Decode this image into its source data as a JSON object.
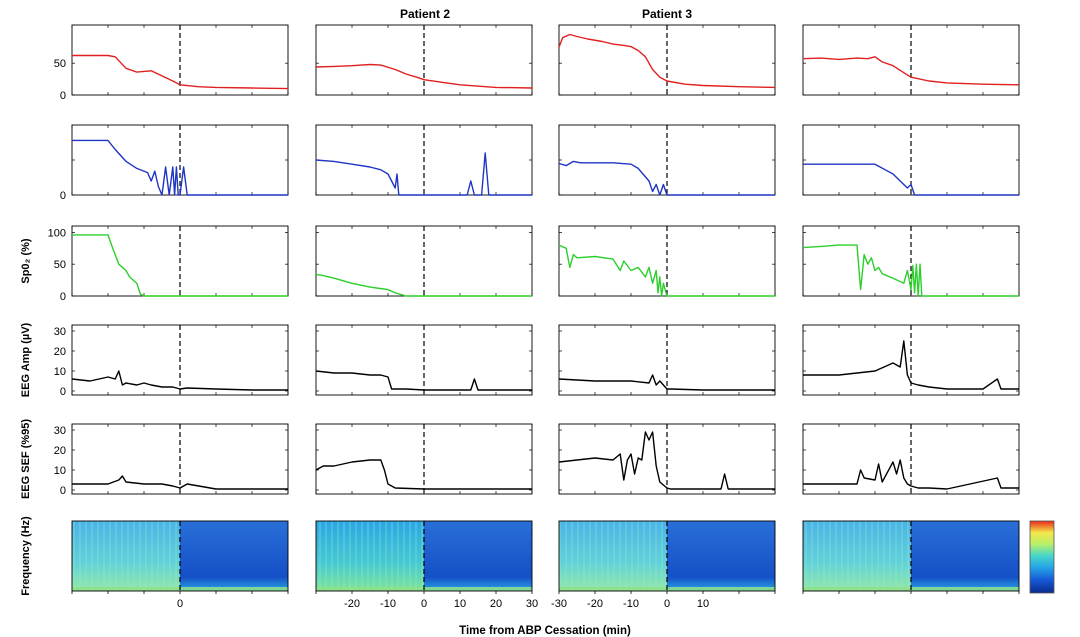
{
  "figure": {
    "column_titles": [
      "",
      "Patient 2",
      "Patient 3",
      ""
    ],
    "xlabel": "Time from ABP Cessation (min)"
  },
  "chart_data": {
    "type": "line",
    "x_unit": "min",
    "xlim": [
      -30,
      30
    ],
    "x_ticks": [
      -30,
      -20,
      -10,
      0,
      10,
      20,
      30
    ],
    "x_ticklabels_by_column": [
      [
        "",
        "",
        "",
        "0",
        "",
        "",
        ""
      ],
      [
        "",
        "-20",
        "-10",
        "0",
        "10",
        "20",
        "30"
      ],
      [
        "-30",
        "-20",
        "-10",
        "0",
        "10",
        "",
        ""
      ],
      [
        "",
        "",
        "",
        "",
        "",
        "",
        ""
      ]
    ],
    "event_line_x": 0,
    "rows": [
      {
        "key": "abp",
        "ylabel": "",
        "color": "#e02020",
        "ylim": [
          0,
          110
        ],
        "y_ticks": [
          0,
          50
        ],
        "y_ticklabels_by_column": [
          [
            "0",
            "50"
          ],
          [],
          [],
          []
        ],
        "series": [
          {
            "x": [
              -30,
              -20,
              -18,
              -15,
              -12,
              -8,
              -5,
              -2,
              0,
              5,
              10,
              20,
              30
            ],
            "y": [
              62,
              62,
              60,
              42,
              36,
              38,
              30,
              22,
              16,
              13,
              12,
              11,
              10
            ]
          },
          {
            "x": [
              -30,
              -25,
              -20,
              -15,
              -12,
              -8,
              -5,
              -2,
              0,
              5,
              10,
              20,
              30
            ],
            "y": [
              44,
              45,
              46,
              48,
              47,
              40,
              33,
              28,
              24,
              20,
              16,
              12,
              11
            ]
          },
          {
            "x": [
              -30,
              -29,
              -27,
              -25,
              -22,
              -18,
              -15,
              -12,
              -10,
              -8,
              -6,
              -4,
              -2,
              0,
              5,
              10,
              20,
              30
            ],
            "y": [
              75,
              90,
              95,
              92,
              88,
              84,
              80,
              78,
              76,
              70,
              60,
              40,
              28,
              22,
              17,
              15,
              13,
              12
            ]
          },
          {
            "x": [
              -30,
              -25,
              -20,
              -15,
              -12,
              -10,
              -8,
              -5,
              -2,
              0,
              5,
              10,
              20,
              30
            ],
            "y": [
              57,
              58,
              56,
              58,
              57,
              60,
              52,
              46,
              35,
              28,
              22,
              19,
              17,
              16
            ]
          }
        ]
      },
      {
        "key": "row2",
        "ylabel": "",
        "color": "#1f35c4",
        "ylim": [
          0,
          100
        ],
        "y_ticks": [
          0,
          50
        ],
        "y_ticklabels_by_column": [
          [
            "0",
            "",
            ""
          ],
          [],
          [],
          []
        ],
        "series": [
          {
            "x": [
              -30,
              -20,
              -18,
              -15,
              -12,
              -9,
              -8,
              -7,
              -6,
              -5,
              -4,
              -3,
              -2,
              -1.5,
              -1,
              -0.5,
              0,
              1,
              2,
              3,
              30
            ],
            "y": [
              78,
              78,
              65,
              48,
              38,
              32,
              20,
              34,
              12,
              0,
              40,
              0,
              40,
              0,
              40,
              0,
              0,
              40,
              0,
              0,
              0
            ]
          },
          {
            "x": [
              -30,
              -25,
              -20,
              -15,
              -12,
              -10,
              -8,
              -7.5,
              -7,
              -6,
              0,
              12,
              13,
              14,
              16,
              17,
              18,
              30
            ],
            "y": [
              50,
              48,
              44,
              40,
              36,
              30,
              10,
              30,
              0,
              0,
              0,
              0,
              20,
              0,
              0,
              60,
              0,
              0
            ]
          },
          {
            "x": [
              -30,
              -28,
              -26,
              -24,
              -20,
              -15,
              -10,
              -8,
              -5,
              -4,
              -3,
              -2,
              -1,
              0,
              1,
              30
            ],
            "y": [
              45,
              42,
              48,
              46,
              46,
              46,
              44,
              38,
              20,
              5,
              15,
              0,
              15,
              0,
              0,
              0
            ]
          },
          {
            "x": [
              -30,
              -20,
              -15,
              -10,
              -5,
              -3,
              -1,
              0,
              1,
              2,
              30
            ],
            "y": [
              44,
              44,
              44,
              44,
              30,
              20,
              10,
              15,
              0,
              0,
              0
            ]
          }
        ]
      },
      {
        "key": "spo2",
        "ylabel": "Sp0₂ (%)",
        "color": "#2ccf2c",
        "ylim": [
          0,
          110
        ],
        "y_ticks": [
          0,
          50,
          100
        ],
        "y_ticklabels_by_column": [
          [
            "0",
            "50",
            "100"
          ],
          [],
          [],
          []
        ],
        "series": [
          {
            "x": [
              -30,
              -20,
              -19,
              -17,
              -15,
              -14,
              -13,
              -12,
              -11,
              -10,
              0,
              30
            ],
            "y": [
              96,
              96,
              80,
              50,
              40,
              30,
              25,
              20,
              3,
              0,
              0,
              0
            ]
          },
          {
            "x": [
              -30,
              -28,
              -25,
              -20,
              -15,
              -10,
              -8,
              -5,
              0,
              30
            ],
            "y": [
              34,
              32,
              28,
              20,
              14,
              10,
              5,
              0,
              0,
              0
            ]
          },
          {
            "x": [
              -30,
              -28,
              -27,
              -26,
              -25,
              -20,
              -15,
              -13,
              -12,
              -10,
              -8,
              -6,
              -5,
              -4,
              -3,
              -2.5,
              -2,
              -1.5,
              -1,
              0,
              1,
              30
            ],
            "y": [
              80,
              75,
              45,
              65,
              60,
              62,
              58,
              40,
              55,
              40,
              45,
              30,
              45,
              20,
              40,
              5,
              30,
              0,
              20,
              0,
              0,
              0
            ]
          },
          {
            "x": [
              -30,
              -25,
              -20,
              -15,
              -14,
              -13,
              -12,
              -11,
              -10,
              -9,
              -8,
              -5,
              -2,
              -1,
              0,
              0.5,
              1,
              1.5,
              2,
              2.5,
              3,
              30
            ],
            "y": [
              76,
              78,
              80,
              80,
              10,
              65,
              50,
              60,
              40,
              45,
              35,
              28,
              20,
              40,
              10,
              48,
              5,
              50,
              0,
              50,
              0,
              0
            ]
          }
        ]
      },
      {
        "key": "eeg_amp",
        "ylabel": "EEG Amp (µV)",
        "color": "#000000",
        "ylim": [
          -2,
          33
        ],
        "y_ticks": [
          0,
          10,
          20,
          30
        ],
        "y_ticklabels_by_column": [
          [
            "0",
            "10",
            "20",
            "30"
          ],
          [],
          [],
          []
        ],
        "series": [
          {
            "x": [
              -30,
              -25,
              -20,
              -18,
              -17,
              -16,
              -15,
              -12,
              -10,
              -8,
              -5,
              -2,
              0,
              2,
              10,
              20,
              30
            ],
            "y": [
              6,
              5,
              7,
              6,
              10,
              3,
              4,
              3,
              4,
              3,
              2,
              2,
              1,
              1.5,
              1,
              0.5,
              0.5
            ]
          },
          {
            "x": [
              -30,
              -25,
              -20,
              -15,
              -12,
              -10,
              -9,
              -5,
              0,
              10,
              13,
              14,
              15,
              20,
              30
            ],
            "y": [
              10,
              9,
              9,
              8,
              8,
              7,
              1,
              1,
              0.5,
              0.5,
              0.5,
              6,
              0.5,
              0.5,
              0.5
            ]
          },
          {
            "x": [
              -30,
              -20,
              -10,
              -5,
              -4,
              -3,
              -2,
              0,
              1,
              10,
              30
            ],
            "y": [
              6,
              5,
              5,
              4,
              8,
              3,
              5,
              1,
              1,
              0.5,
              0.5
            ]
          },
          {
            "x": [
              -30,
              -20,
              -15,
              -10,
              -5,
              -3,
              -2,
              -1,
              0,
              2,
              5,
              10,
              20,
              24,
              25,
              30
            ],
            "y": [
              8,
              8,
              9,
              10,
              14,
              12,
              25,
              8,
              4,
              3,
              2,
              1,
              1,
              6,
              1,
              1
            ]
          }
        ]
      },
      {
        "key": "eeg_sef",
        "ylabel": "EEG SEF (%95)",
        "color": "#000000",
        "ylim": [
          -2,
          33
        ],
        "y_ticks": [
          0,
          10,
          20,
          30
        ],
        "y_ticklabels_by_column": [
          [
            "0",
            "10",
            "20",
            "30"
          ],
          [],
          [],
          []
        ],
        "series": [
          {
            "x": [
              -30,
              -25,
              -20,
              -17,
              -16,
              -15,
              -10,
              -5,
              -2,
              0,
              2,
              10,
              20,
              30
            ],
            "y": [
              3,
              3,
              3,
              5,
              7,
              4,
              3,
              3,
              2,
              1,
              3,
              0.5,
              0.5,
              0.5
            ]
          },
          {
            "x": [
              -30,
              -28,
              -25,
              -20,
              -15,
              -12,
              -11,
              -10,
              -9,
              -8,
              0,
              5,
              10,
              30
            ],
            "y": [
              10,
              12,
              12,
              14,
              15,
              15,
              10,
              3,
              2,
              1,
              0.5,
              0.5,
              0.5,
              0.5
            ]
          },
          {
            "x": [
              -30,
              -25,
              -20,
              -15,
              -13,
              -12,
              -11,
              -10,
              -9,
              -8,
              -7,
              -6,
              -5,
              -4,
              -3,
              -2,
              0,
              1,
              5,
              10,
              15,
              16,
              17,
              30
            ],
            "y": [
              14,
              15,
              16,
              15,
              18,
              5,
              15,
              18,
              8,
              16,
              15,
              29,
              25,
              29,
              12,
              4,
              1,
              0.5,
              0.5,
              0.5,
              0.5,
              8,
              0.5,
              0.5
            ]
          },
          {
            "x": [
              -30,
              -20,
              -15,
              -14,
              -13,
              -10,
              -9,
              -8,
              -5,
              -4,
              -3,
              -2,
              -1,
              0,
              2,
              5,
              10,
              24,
              25,
              30
            ],
            "y": [
              3,
              3,
              3,
              10,
              6,
              5,
              13,
              4,
              14,
              8,
              15,
              6,
              3,
              2,
              1,
              1,
              0.5,
              6,
              1,
              1
            ]
          }
        ]
      },
      {
        "key": "spectrogram",
        "type": "heatmap",
        "ylabel": "Frequency (Hz)",
        "colormap": [
          "#0a2a8e",
          "#1659d6",
          "#27a6e8",
          "#47d6c8",
          "#b8f06a",
          "#f5e64a",
          "#e8281c"
        ],
        "pre_ABP_intensity": [
          "medium",
          "high",
          "medium",
          "medium"
        ],
        "post_ABP_intensity": [
          "low",
          "low",
          "low",
          "low"
        ]
      }
    ]
  }
}
